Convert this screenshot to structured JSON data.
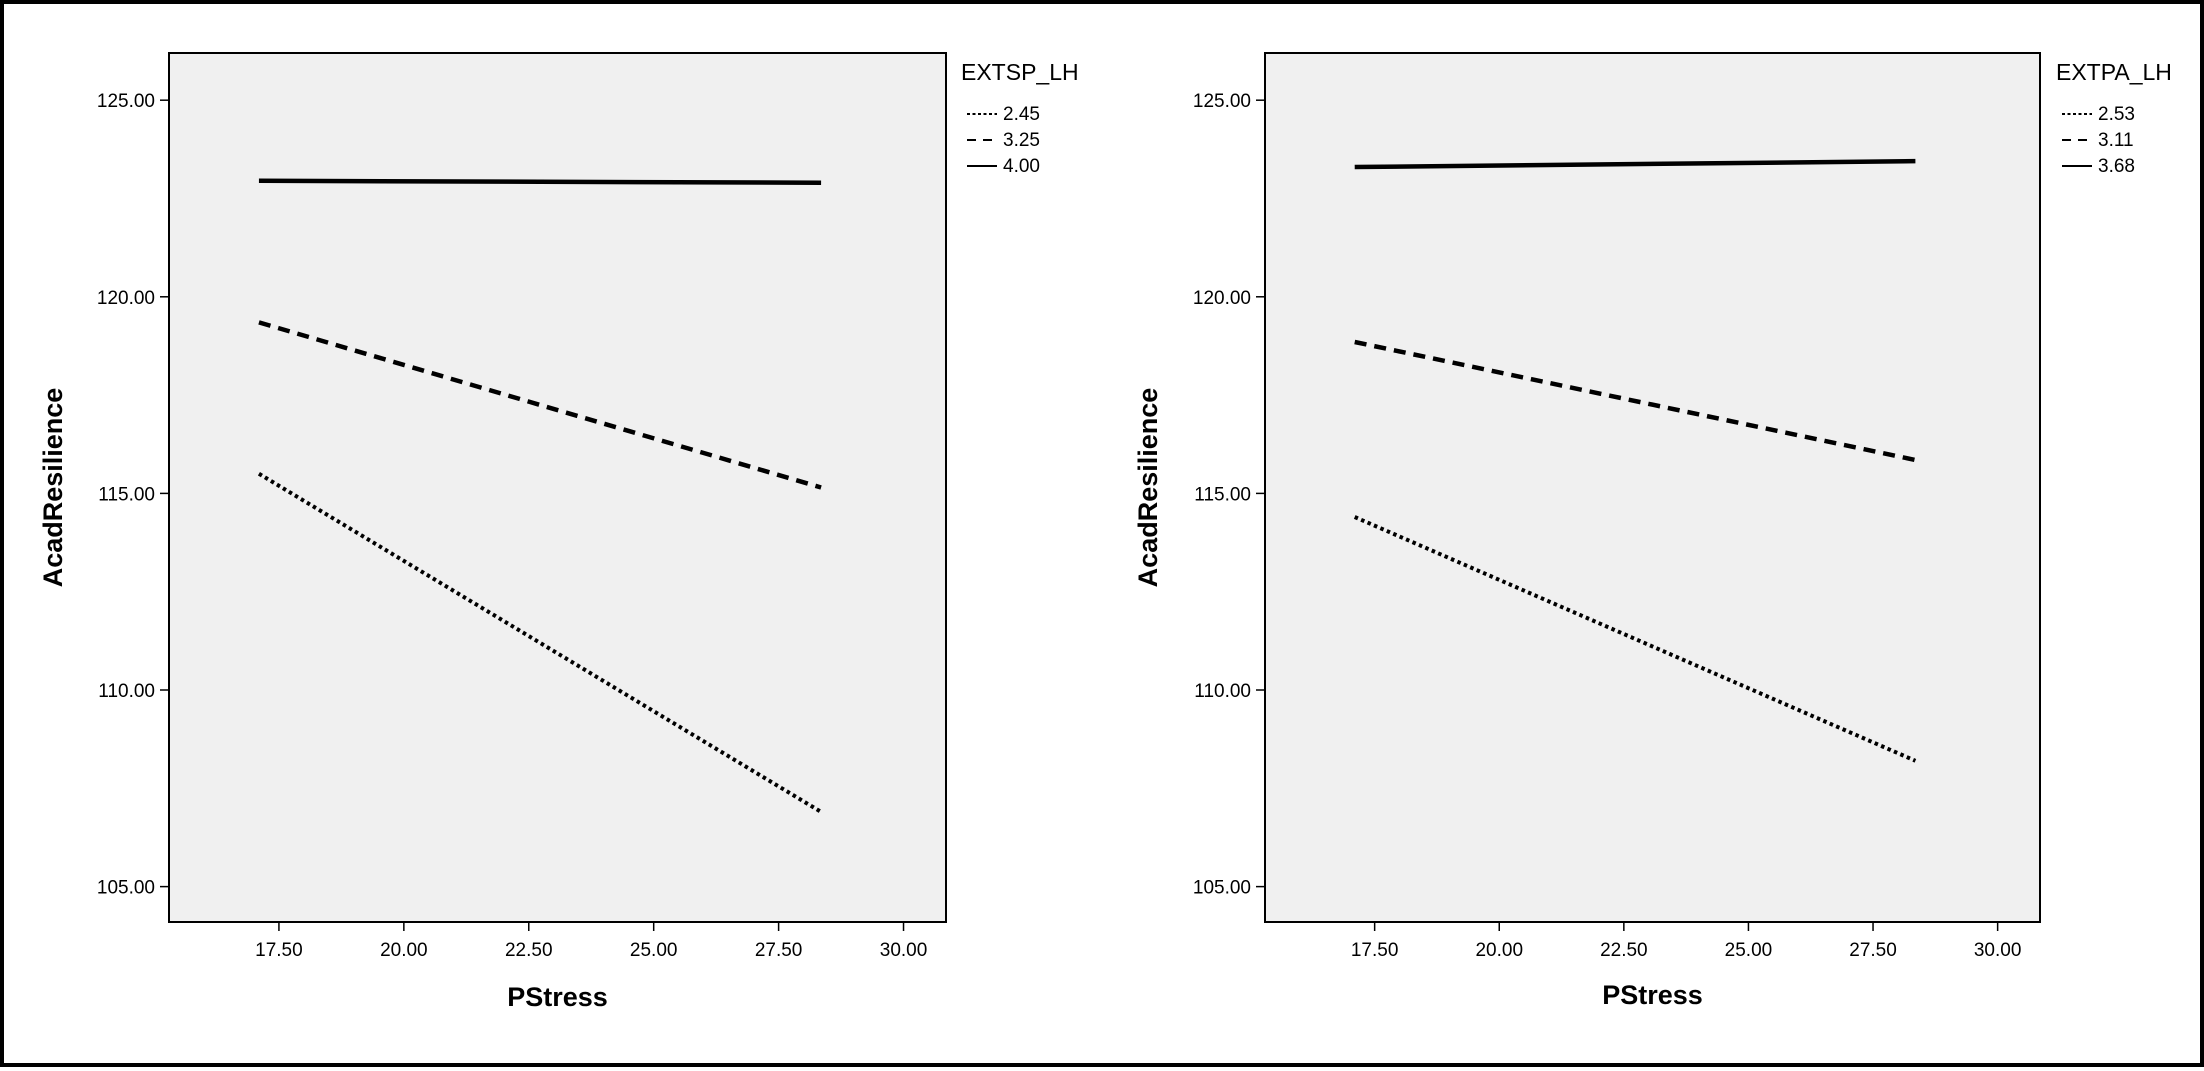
{
  "chart_data": [
    {
      "type": "line",
      "xlabel": "PStress",
      "ylabel": "AcadResilience",
      "xlim": [
        15.3,
        30.85
      ],
      "ylim": [
        104.1,
        126.2
      ],
      "xticks": [
        "17.50",
        "20.00",
        "22.50",
        "25.00",
        "27.50",
        "30.00"
      ],
      "xtick_values": [
        17.5,
        20,
        22.5,
        25,
        27.5,
        30
      ],
      "yticks": [
        "105.00",
        "110.00",
        "115.00",
        "120.00",
        "125.00"
      ],
      "ytick_values": [
        105,
        110,
        115,
        120,
        125
      ],
      "grid": false,
      "legend": {
        "title": "EXTSP_LH",
        "placement": "right-outside-top"
      },
      "series": [
        {
          "name": "2.45",
          "style": "dotted",
          "x": [
            17.1,
            28.35
          ],
          "y": [
            115.5,
            106.9
          ]
        },
        {
          "name": "3.25",
          "style": "dashed",
          "x": [
            17.1,
            28.35
          ],
          "y": [
            119.35,
            115.15
          ]
        },
        {
          "name": "4.00",
          "style": "solid",
          "x": [
            17.1,
            28.35
          ],
          "y": [
            122.95,
            122.9
          ]
        }
      ],
      "colors": {
        "plot_background": "#f0f0f0",
        "lines": "#000000"
      }
    },
    {
      "type": "line",
      "xlabel": "PStress",
      "ylabel": "AcadResilience",
      "xlim": [
        15.3,
        30.85
      ],
      "ylim": [
        104.1,
        126.2
      ],
      "xticks": [
        "17.50",
        "20.00",
        "22.50",
        "25.00",
        "27.50",
        "30.00"
      ],
      "xtick_values": [
        17.5,
        20,
        22.5,
        25,
        27.5,
        30
      ],
      "yticks": [
        "105.00",
        "110.00",
        "115.00",
        "120.00",
        "125.00"
      ],
      "ytick_values": [
        105,
        110,
        115,
        120,
        125
      ],
      "grid": false,
      "legend": {
        "title": "EXTPA_LH",
        "placement": "right-outside-top"
      },
      "series": [
        {
          "name": "2.53",
          "style": "dotted",
          "x": [
            17.1,
            28.35
          ],
          "y": [
            114.4,
            108.2
          ]
        },
        {
          "name": "3.11",
          "style": "dashed",
          "x": [
            17.1,
            28.35
          ],
          "y": [
            118.85,
            115.85
          ]
        },
        {
          "name": "3.68",
          "style": "solid",
          "x": [
            17.1,
            28.35
          ],
          "y": [
            123.3,
            123.45
          ]
        }
      ],
      "colors": {
        "plot_background": "#f0f0f0",
        "lines": "#000000"
      }
    }
  ]
}
